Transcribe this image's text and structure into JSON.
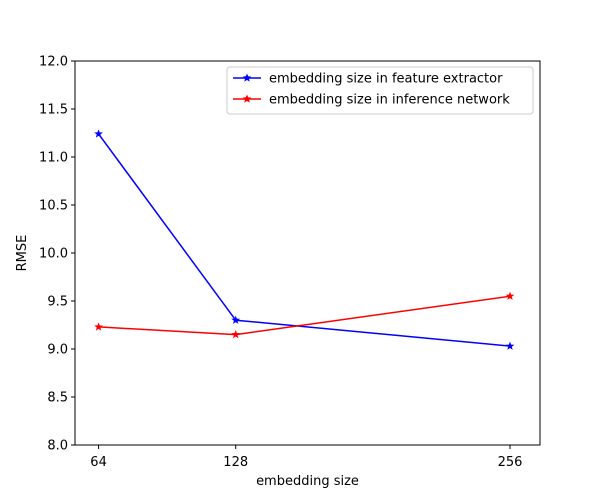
{
  "chart_data": {
    "type": "line",
    "xlabel": "embedding size",
    "ylabel": "RMSE",
    "x": [
      64,
      128,
      256
    ],
    "x_ticks": [
      "64",
      "128",
      "256"
    ],
    "xlim": [
      53,
      270
    ],
    "ylim": [
      8.0,
      12.0
    ],
    "y_ticks": [
      "8.0",
      "8.5",
      "9.0",
      "9.5",
      "10.0",
      "10.5",
      "11.0",
      "11.5",
      "12.0"
    ],
    "grid": false,
    "legend_position": "top-right",
    "marker": "star",
    "series": [
      {
        "name": "embedding size in feature extractor",
        "color": "#0000ff",
        "values": [
          11.24,
          9.3,
          9.03
        ]
      },
      {
        "name": "embedding size in inference network",
        "color": "#ff0000",
        "values": [
          9.23,
          9.15,
          9.55
        ]
      }
    ]
  }
}
